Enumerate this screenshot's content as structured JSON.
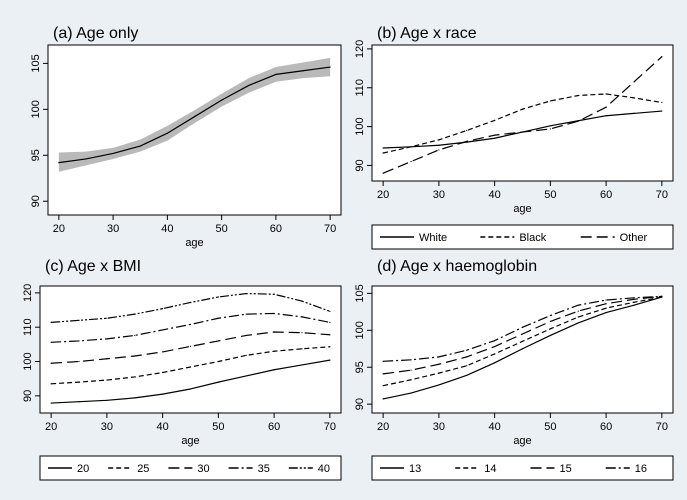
{
  "chart_data": [
    {
      "id": "a",
      "type": "line",
      "title": "(a) Age only",
      "xlabel": "age",
      "ylabel": "",
      "xlim": [
        18,
        72
      ],
      "ylim": [
        88.5,
        107
      ],
      "xticks": [
        20,
        30,
        40,
        50,
        60,
        70
      ],
      "yticks": [
        90,
        95,
        100,
        105
      ],
      "x": [
        20,
        25,
        30,
        35,
        40,
        45,
        50,
        55,
        60,
        65,
        70
      ],
      "series": [
        {
          "values": [
            94.2,
            94.6,
            95.2,
            96.0,
            97.4,
            99.2,
            101.0,
            102.6,
            103.8,
            104.2,
            104.6
          ],
          "lower": [
            93.2,
            93.9,
            94.6,
            95.4,
            96.6,
            98.5,
            100.3,
            101.8,
            103.0,
            103.4,
            103.6
          ],
          "upper": [
            95.3,
            95.4,
            95.8,
            96.7,
            98.2,
            99.9,
            101.7,
            103.4,
            104.6,
            105.1,
            105.6
          ],
          "style": "solid"
        }
      ],
      "has_legend": false
    },
    {
      "id": "b",
      "type": "line",
      "title": "(b) Age x race",
      "xlabel": "age",
      "ylabel": "",
      "xlim": [
        18,
        72
      ],
      "ylim": [
        86,
        121
      ],
      "xticks": [
        20,
        30,
        40,
        50,
        60,
        70
      ],
      "yticks": [
        90,
        100,
        110,
        120
      ],
      "x": [
        20,
        25,
        30,
        35,
        40,
        45,
        50,
        55,
        60,
        65,
        70
      ],
      "series": [
        {
          "name": "White",
          "style": "solid",
          "values": [
            94.5,
            94.8,
            95.2,
            96.0,
            97.0,
            98.6,
            100.2,
            101.5,
            102.8,
            103.4,
            104.0
          ]
        },
        {
          "name": "Black",
          "style": "short-dash",
          "values": [
            93.2,
            94.8,
            96.6,
            99.0,
            101.6,
            104.5,
            106.6,
            108.0,
            108.4,
            107.4,
            106.2
          ]
        },
        {
          "name": "Other",
          "style": "long-dash",
          "values": [
            88.0,
            91.0,
            94.0,
            96.2,
            97.8,
            98.6,
            99.4,
            101.4,
            105.0,
            111.5,
            118.0
          ]
        }
      ],
      "legend_position": "bottom"
    },
    {
      "id": "c",
      "type": "line",
      "title": "(c) Age x BMI",
      "xlabel": "age",
      "ylabel": "",
      "xlim": [
        18,
        72
      ],
      "ylim": [
        85,
        122
      ],
      "xticks": [
        20,
        30,
        40,
        50,
        60,
        70
      ],
      "yticks": [
        90,
        100,
        110,
        120
      ],
      "x": [
        20,
        25,
        30,
        35,
        40,
        45,
        50,
        55,
        60,
        65,
        70
      ],
      "series": [
        {
          "name": "20",
          "style": "solid",
          "values": [
            87.9,
            88.3,
            88.7,
            89.4,
            90.5,
            92.0,
            94.0,
            95.8,
            97.6,
            99.0,
            100.4
          ]
        },
        {
          "name": "25",
          "style": "short-dash",
          "values": [
            93.5,
            94.0,
            94.6,
            95.5,
            96.8,
            98.4,
            100.0,
            101.8,
            103.0,
            103.7,
            104.3
          ]
        },
        {
          "name": "30",
          "style": "long-dash",
          "values": [
            99.5,
            100.0,
            100.8,
            101.6,
            102.8,
            104.4,
            106.0,
            107.6,
            108.6,
            108.4,
            107.8
          ]
        },
        {
          "name": "35",
          "style": "dash-dot",
          "values": [
            105.6,
            106.0,
            106.6,
            107.6,
            109.2,
            110.8,
            112.6,
            113.8,
            114.0,
            113.0,
            111.4
          ]
        },
        {
          "name": "40",
          "style": "dash-dot-dot",
          "values": [
            111.4,
            112.0,
            112.6,
            113.8,
            115.4,
            117.2,
            118.8,
            119.8,
            119.6,
            117.6,
            114.6
          ]
        }
      ],
      "legend_position": "bottom"
    },
    {
      "id": "d",
      "type": "line",
      "title": "(d) Age x haemoglobin",
      "xlabel": "age",
      "ylabel": "",
      "xlim": [
        18,
        72
      ],
      "ylim": [
        88.8,
        106
      ],
      "xticks": [
        20,
        30,
        40,
        50,
        60,
        70
      ],
      "yticks": [
        90,
        95,
        100,
        105
      ],
      "x": [
        20,
        25,
        30,
        35,
        40,
        45,
        50,
        55,
        60,
        65,
        70
      ],
      "series": [
        {
          "name": "13",
          "style": "solid",
          "values": [
            90.7,
            91.5,
            92.6,
            93.9,
            95.6,
            97.5,
            99.3,
            101.0,
            102.4,
            103.4,
            104.5
          ]
        },
        {
          "name": "14",
          "style": "short-dash",
          "values": [
            92.5,
            93.3,
            94.2,
            95.2,
            96.8,
            98.5,
            100.2,
            101.8,
            103.0,
            103.8,
            104.5
          ]
        },
        {
          "name": "15",
          "style": "long-dash",
          "values": [
            94.1,
            94.6,
            95.4,
            96.4,
            97.8,
            99.5,
            101.2,
            102.6,
            103.6,
            104.2,
            104.6
          ]
        },
        {
          "name": "16",
          "style": "dash-dot",
          "values": [
            95.8,
            96.0,
            96.4,
            97.3,
            98.6,
            100.4,
            102.0,
            103.4,
            104.1,
            104.4,
            104.6
          ]
        }
      ],
      "legend_position": "bottom"
    }
  ]
}
